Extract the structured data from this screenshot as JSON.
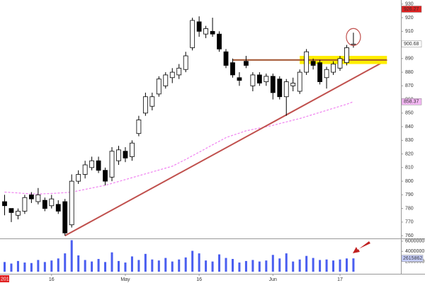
{
  "chart_data": {
    "type": "candlestick",
    "year_label": "2013",
    "categories": [
      null,
      null,
      null,
      null,
      null,
      null,
      null,
      "16",
      null,
      null,
      null,
      null,
      null,
      null,
      null,
      null,
      null,
      null,
      "May",
      null,
      null,
      null,
      null,
      null,
      null,
      null,
      null,
      null,
      null,
      "16",
      null,
      null,
      null,
      null,
      null,
      null,
      null,
      null,
      null,
      null,
      "Jun",
      null,
      null,
      null,
      null,
      null,
      null,
      null,
      null,
      null,
      "17",
      null,
      null
    ],
    "open": [
      785,
      780,
      775,
      778,
      790,
      785,
      786,
      782,
      783,
      785,
      768,
      800,
      805,
      810,
      815,
      808,
      803,
      815,
      822,
      818,
      835,
      850,
      855,
      864,
      870,
      876,
      878,
      882,
      898,
      917,
      908,
      910,
      908,
      895,
      887,
      876,
      888,
      870,
      878,
      873,
      877,
      875,
      862,
      870,
      866,
      880,
      888,
      887,
      876,
      880,
      883,
      887,
      900
    ],
    "high": [
      790,
      780,
      780,
      790,
      792,
      795,
      788,
      790,
      786,
      787,
      805,
      808,
      815,
      818,
      818,
      810,
      825,
      826,
      825,
      830,
      848,
      865,
      865,
      877,
      880,
      883,
      886,
      895,
      920,
      921,
      914,
      920,
      910,
      897,
      890,
      880,
      892,
      880,
      880,
      879,
      879,
      877,
      875,
      876,
      882,
      897,
      890,
      889,
      884,
      888,
      892,
      900,
      909
    ],
    "low": [
      775,
      770,
      772,
      776,
      784,
      783,
      778,
      780,
      776,
      760,
      766,
      798,
      802,
      808,
      806,
      797,
      800,
      812,
      814,
      815,
      833,
      848,
      852,
      862,
      868,
      872,
      875,
      880,
      896,
      906,
      905,
      906,
      895,
      883,
      876,
      870,
      883,
      866,
      870,
      870,
      860,
      860,
      848,
      866,
      864,
      878,
      882,
      871,
      868,
      878,
      881,
      885,
      898
    ],
    "close": [
      782,
      777,
      778,
      788,
      787,
      790,
      780,
      787,
      778,
      762,
      800,
      805,
      812,
      815,
      808,
      800,
      822,
      823,
      817,
      828,
      845,
      862,
      862,
      875,
      878,
      880,
      883,
      892,
      918,
      910,
      912,
      908,
      897,
      885,
      878,
      874,
      885,
      878,
      872,
      877,
      865,
      862,
      873,
      872,
      880,
      895,
      885,
      873,
      882,
      886,
      890,
      898,
      900.68
    ],
    "up_color": "#ffffff",
    "down_color": "#000000",
    "moving_average": {
      "color": "#f080f0",
      "values": [
        792,
        791.7,
        791.4,
        791,
        790.8,
        790.6,
        790.8,
        791,
        791.3,
        791.6,
        792,
        793,
        794,
        795,
        796,
        797,
        798.4,
        799.8,
        801.2,
        802.6,
        804,
        805.4,
        806.8,
        808.2,
        809.6,
        811,
        813.5,
        816,
        818.7,
        821.3,
        824,
        826.7,
        829.3,
        832,
        833.7,
        835.3,
        837,
        838,
        839,
        840,
        841,
        842.3,
        843.5,
        844.8,
        846,
        847.5,
        849,
        850.5,
        852,
        853.5,
        855,
        856.5,
        858.37
      ]
    },
    "ylim": [
      758,
      933
    ],
    "yticks": [
      760,
      770,
      780,
      790,
      800,
      810,
      820,
      830,
      840,
      850,
      860,
      870,
      880,
      890,
      900,
      910,
      920,
      930
    ],
    "price_markers": [
      {
        "value": 926.27,
        "color": "#e02020"
      },
      {
        "value": 900.68,
        "color": "#ffffff"
      },
      {
        "value": 858.37,
        "color": "#f4b8f4"
      }
    ],
    "volume": {
      "color": "#4a5ef0",
      "values": [
        1900000,
        1600000,
        2100000,
        1800000,
        1700000,
        2300000,
        1900000,
        2200000,
        2600000,
        3600000,
        6200000,
        3200000,
        2300000,
        2000000,
        2500000,
        1900000,
        3800000,
        2100000,
        1800000,
        3000000,
        2300000,
        3500000,
        2400000,
        2200000,
        2700000,
        2000000,
        2400000,
        2800000,
        4100000,
        3600000,
        2200000,
        2000000,
        3400000,
        2700000,
        2500000,
        1800000,
        2100000,
        2300000,
        2000000,
        2200000,
        3300000,
        2600000,
        3600000,
        2000000,
        2400000,
        3100000,
        2700000,
        2300000,
        2400000,
        2200000,
        2400000,
        2600000,
        2615862
      ],
      "ylim": [
        0,
        6400000
      ],
      "yticks": [
        2000000,
        4000000,
        6000000
      ],
      "marker": 2615862
    },
    "annotations": [
      {
        "kind": "line",
        "color": "#c0504d",
        "x": [
          9,
          57
        ],
        "y": [
          760,
          889
        ]
      },
      {
        "kind": "highlight",
        "color": "#ffee00",
        "x": [
          44,
          57
        ],
        "y": [
          886,
          892
        ]
      },
      {
        "kind": "line",
        "color": "#a0522d",
        "x": [
          34,
          57
        ],
        "y": [
          889,
          889
        ]
      }
    ]
  }
}
